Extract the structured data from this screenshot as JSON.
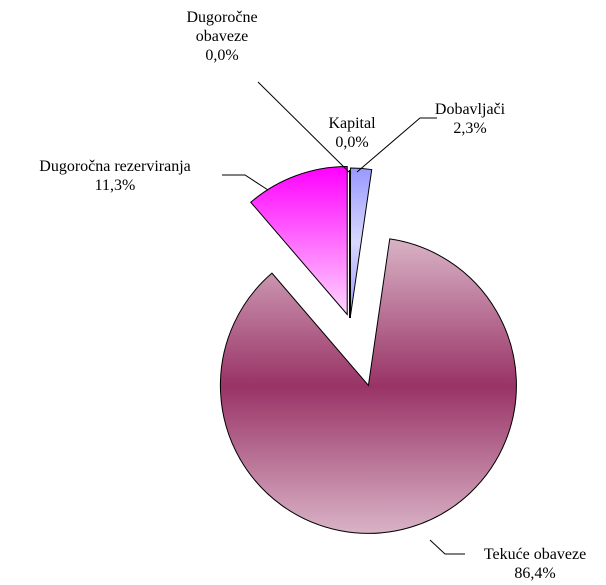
{
  "chart_data": {
    "type": "pie",
    "categories": [
      "Kapital",
      "Dobavljači",
      "Tekuće obaveze",
      "Dugoročna rezerviranja",
      "Dugoročne obaveze"
    ],
    "values": [
      0,
      2.3,
      86.4,
      11.3,
      0
    ],
    "value_labels": [
      "0,0%",
      "2,3%",
      "86,4%",
      "11,3%",
      "0,0%"
    ],
    "colors": [
      [
        "#ffffff",
        "#ffffff"
      ],
      [
        "#9999ff",
        "#d8d8ff"
      ],
      [
        "#d9b3c6",
        "#993366"
      ],
      [
        "#ff00ff",
        "#ffd6ff"
      ],
      [
        "#ffffff",
        "#ffffff"
      ]
    ]
  }
}
